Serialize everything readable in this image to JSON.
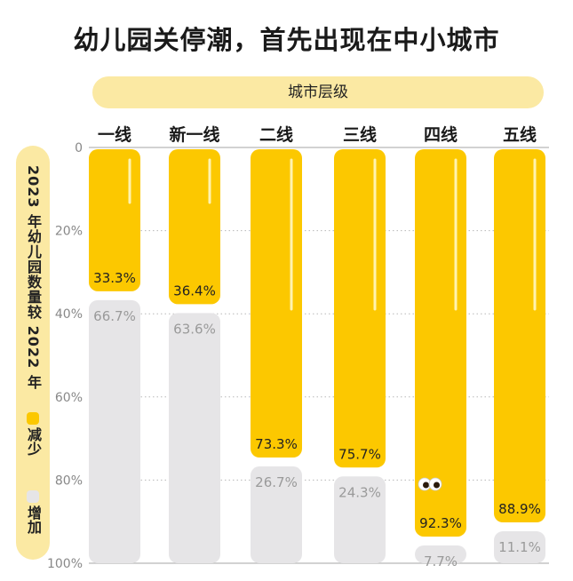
{
  "title": "幼儿园关停潮，首先出现在中小城市",
  "header": {
    "label": "城市层级"
  },
  "side": {
    "label": "2023 年幼儿园数量较 2022 年",
    "legend_decrease": "减少",
    "legend_increase": "增加"
  },
  "colors": {
    "decrease": "#fcc800",
    "increase": "#e6e5e7",
    "pill": "#fbe9a3"
  },
  "chart_data": {
    "type": "bar",
    "stacked": true,
    "orientation": "vertical",
    "categories": [
      "一线",
      "新一线",
      "二线",
      "三线",
      "四线",
      "五线"
    ],
    "series": [
      {
        "name": "减少",
        "values": [
          33.3,
          36.4,
          73.3,
          75.7,
          92.3,
          88.9
        ],
        "labels": [
          "33.3%",
          "36.4%",
          "73.3%",
          "75.7%",
          "92.3%",
          "88.9%"
        ]
      },
      {
        "name": "增加",
        "values": [
          66.7,
          63.6,
          26.7,
          24.3,
          7.7,
          11.1
        ],
        "labels": [
          "66.7%",
          "63.6%",
          "26.7%",
          "24.3%",
          "7.7%",
          "11.1%"
        ]
      }
    ],
    "yticks": [
      "0",
      "20%",
      "40%",
      "60%",
      "80%",
      "100%"
    ],
    "ylim": [
      0,
      100
    ],
    "y_axis_direction": "top-to-bottom",
    "grid": true
  }
}
